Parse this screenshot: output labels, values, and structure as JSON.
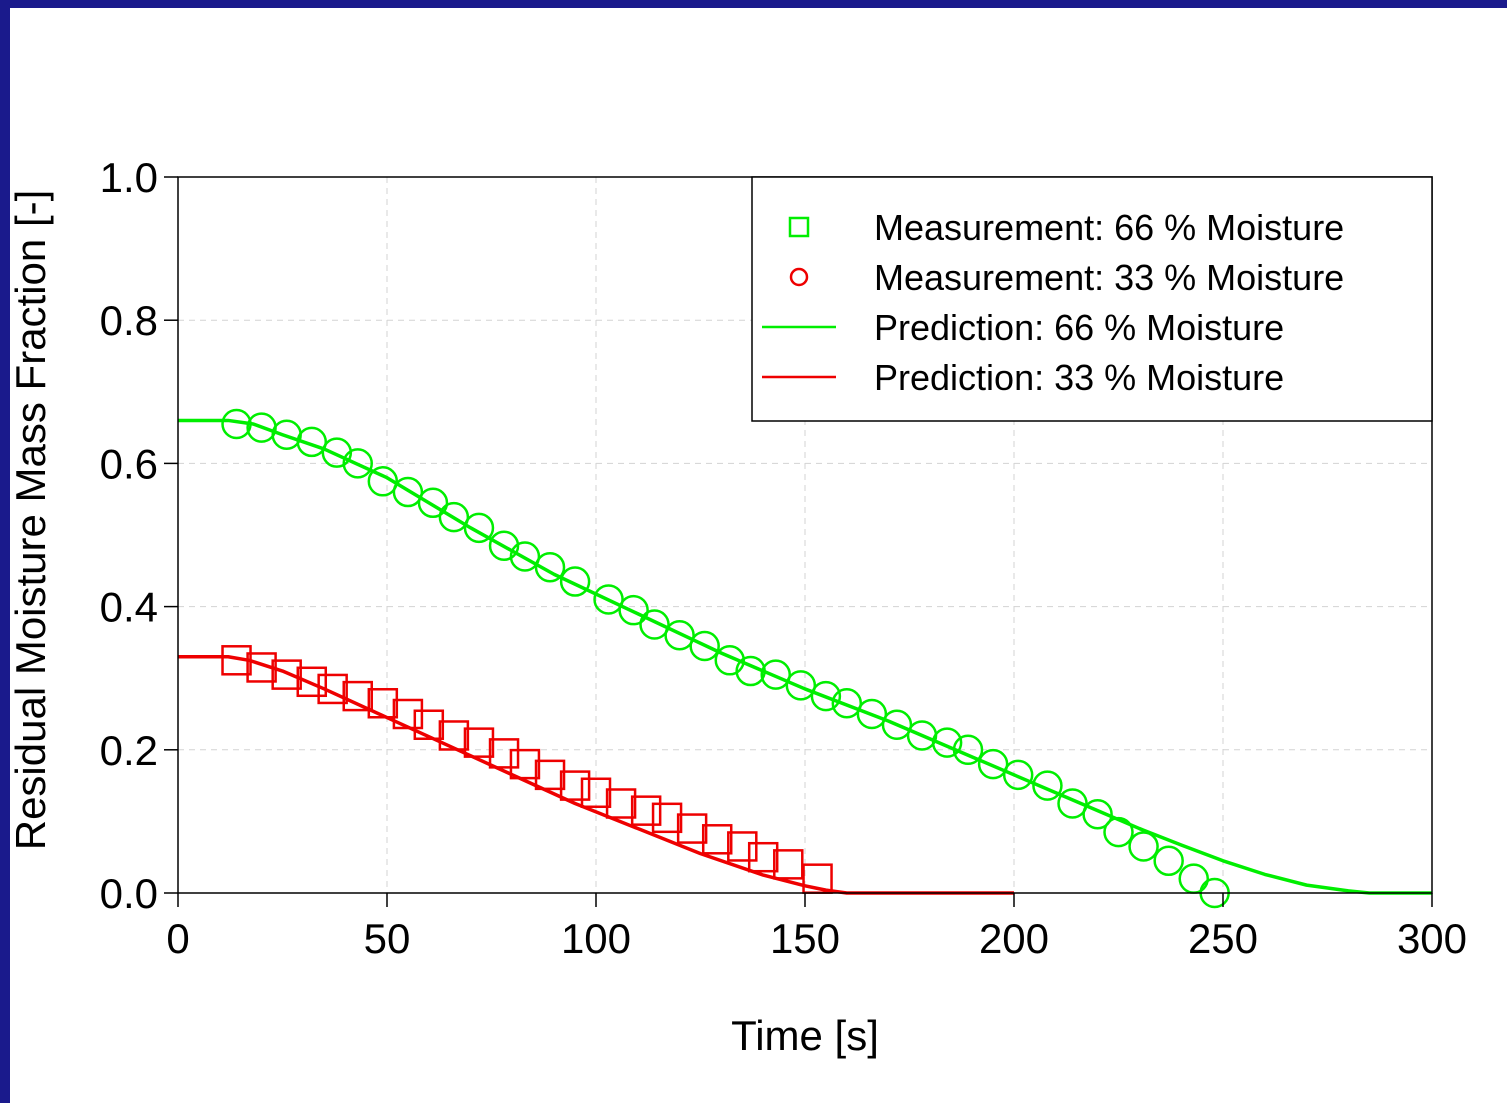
{
  "chart_data": {
    "type": "line",
    "title": "",
    "xlabel": "Time [s]",
    "ylabel": "Residual Moisture Mass Fraction [-]",
    "xlim": [
      0,
      300
    ],
    "ylim": [
      0,
      1
    ],
    "xticks": [
      0,
      50,
      100,
      150,
      200,
      250,
      300
    ],
    "yticks": [
      0.0,
      0.2,
      0.4,
      0.6,
      0.8,
      1.0
    ],
    "ytick_labels": [
      "0.0",
      "0.2",
      "0.4",
      "0.6",
      "0.8",
      "1.0"
    ],
    "grid": true,
    "legend_position": "top-right",
    "legend": [
      {
        "label": "Measurement: 66 % Moisture",
        "marker": "square",
        "color": "#00ee00"
      },
      {
        "label": "Measurement: 33 % Moisture",
        "marker": "circle",
        "color": "#ee0000"
      },
      {
        "label": "Prediction: 66 % Moisture",
        "marker": "line",
        "color": "#00ee00"
      },
      {
        "label": "Prediction: 33 % Moisture",
        "marker": "line",
        "color": "#ee0000"
      }
    ],
    "series": [
      {
        "kind": "scatter",
        "marker": "circle",
        "color": "#00ee00",
        "x": [
          14,
          20,
          26,
          32,
          38,
          43,
          49,
          55,
          61,
          66,
          72,
          78,
          83,
          89,
          95,
          103,
          109,
          114,
          120,
          126,
          132,
          137,
          143,
          149,
          155,
          160,
          166,
          172,
          178,
          184,
          189,
          195,
          201,
          208,
          214,
          220,
          225,
          231,
          237,
          243,
          248
        ],
        "y": [
          0.655,
          0.65,
          0.64,
          0.63,
          0.615,
          0.6,
          0.575,
          0.56,
          0.545,
          0.525,
          0.51,
          0.485,
          0.47,
          0.455,
          0.435,
          0.41,
          0.395,
          0.375,
          0.36,
          0.345,
          0.325,
          0.31,
          0.305,
          0.29,
          0.275,
          0.265,
          0.25,
          0.235,
          0.22,
          0.21,
          0.2,
          0.18,
          0.165,
          0.15,
          0.125,
          0.11,
          0.085,
          0.065,
          0.045,
          0.02,
          0.0
        ]
      },
      {
        "kind": "scatter",
        "marker": "square",
        "color": "#ee0000",
        "x": [
          14,
          20,
          26,
          32,
          37,
          43,
          49,
          55,
          60,
          66,
          72,
          78,
          83,
          89,
          95,
          100,
          106,
          112,
          117,
          123,
          129,
          135,
          140,
          146,
          153
        ],
        "y": [
          0.325,
          0.315,
          0.305,
          0.295,
          0.285,
          0.275,
          0.265,
          0.25,
          0.235,
          0.22,
          0.21,
          0.195,
          0.18,
          0.165,
          0.15,
          0.14,
          0.125,
          0.115,
          0.105,
          0.09,
          0.075,
          0.065,
          0.05,
          0.04,
          0.02
        ]
      },
      {
        "kind": "line",
        "color": "#00ee00",
        "x": [
          0,
          12,
          18,
          25,
          35,
          50,
          70,
          90,
          110,
          130,
          150,
          170,
          190,
          210,
          220,
          230,
          240,
          250,
          260,
          270,
          280,
          285,
          290,
          300
        ],
        "y": [
          0.66,
          0.66,
          0.655,
          0.64,
          0.62,
          0.58,
          0.51,
          0.445,
          0.39,
          0.335,
          0.285,
          0.24,
          0.19,
          0.14,
          0.115,
          0.09,
          0.067,
          0.045,
          0.026,
          0.011,
          0.003,
          0.0,
          0.0,
          0.0
        ]
      },
      {
        "kind": "line",
        "color": "#ee0000",
        "x": [
          0,
          12,
          17,
          25,
          35,
          50,
          65,
          80,
          95,
          110,
          125,
          140,
          150,
          155,
          160,
          200
        ],
        "y": [
          0.33,
          0.33,
          0.325,
          0.31,
          0.285,
          0.245,
          0.205,
          0.165,
          0.125,
          0.09,
          0.055,
          0.025,
          0.01,
          0.004,
          0.0,
          0.0
        ]
      }
    ]
  }
}
